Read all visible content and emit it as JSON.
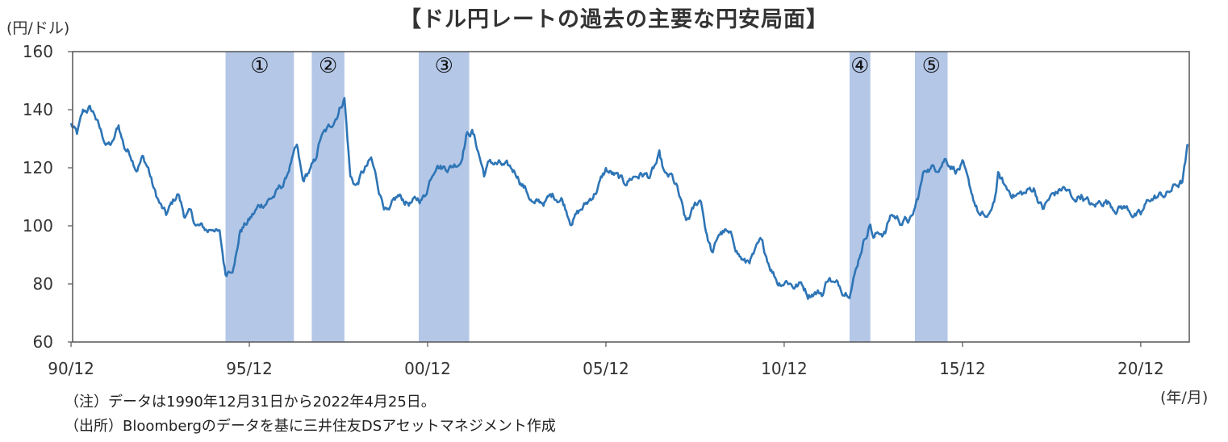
{
  "chart_data": {
    "type": "line",
    "title": "【ドル円レートの過去の主要な円安局面】",
    "ylabel": "(円/ドル)",
    "xlabel": "(年/月)",
    "ylim": [
      60,
      160
    ],
    "yticks": [
      60,
      80,
      100,
      120,
      140,
      160
    ],
    "xlim": [
      "1990-12-31",
      "2022-04-25"
    ],
    "xticks": [
      {
        "label": "90/12",
        "date": "1990-12"
      },
      {
        "label": "95/12",
        "date": "1995-12"
      },
      {
        "label": "00/12",
        "date": "2000-12"
      },
      {
        "label": "05/12",
        "date": "2005-12"
      },
      {
        "label": "10/12",
        "date": "2010-12"
      },
      {
        "label": "15/12",
        "date": "2015-12"
      },
      {
        "label": "20/12",
        "date": "2020-12"
      }
    ],
    "grid": false,
    "colors": {
      "line": "#2e75b6",
      "shade": "#b4c7e7",
      "frame": "#555555"
    },
    "shaded_periods": [
      {
        "label": "①",
        "start": "1995-04",
        "end": "1997-03"
      },
      {
        "label": "②",
        "start": "1997-09",
        "end": "1998-08"
      },
      {
        "label": "③",
        "start": "2000-09",
        "end": "2002-02"
      },
      {
        "label": "④",
        "start": "2012-10",
        "end": "2013-05"
      },
      {
        "label": "⑤",
        "start": "2014-08",
        "end": "2015-07"
      }
    ],
    "series": [
      {
        "points": [
          [
            "1990-12",
            135
          ],
          [
            "1991-02",
            131
          ],
          [
            "1991-04",
            138
          ],
          [
            "1991-06",
            140
          ],
          [
            "1991-08",
            138
          ],
          [
            "1991-10",
            132
          ],
          [
            "1991-12",
            128
          ],
          [
            "1992-02",
            128
          ],
          [
            "1992-04",
            134
          ],
          [
            "1992-06",
            127
          ],
          [
            "1992-08",
            125
          ],
          [
            "1992-10",
            121
          ],
          [
            "1992-12",
            124
          ],
          [
            "1993-02",
            120
          ],
          [
            "1993-04",
            112
          ],
          [
            "1993-06",
            107
          ],
          [
            "1993-08",
            103
          ],
          [
            "1993-10",
            107
          ],
          [
            "1993-12",
            111
          ],
          [
            "1994-02",
            104
          ],
          [
            "1994-04",
            104
          ],
          [
            "1994-06",
            100
          ],
          [
            "1994-08",
            99
          ],
          [
            "1994-10",
            98
          ],
          [
            "1994-12",
            100
          ],
          [
            "1995-02",
            97
          ],
          [
            "1995-04",
            83
          ],
          [
            "1995-05",
            85
          ],
          [
            "1995-07",
            88
          ],
          [
            "1995-09",
            99
          ],
          [
            "1995-12",
            102
          ],
          [
            "1996-03",
            106
          ],
          [
            "1996-06",
            109
          ],
          [
            "1996-09",
            111
          ],
          [
            "1996-12",
            115
          ],
          [
            "1997-02",
            122
          ],
          [
            "1997-04",
            126
          ],
          [
            "1997-06",
            114
          ],
          [
            "1997-08",
            118
          ],
          [
            "1997-10",
            121
          ],
          [
            "1997-12",
            130
          ],
          [
            "1998-03",
            133
          ],
          [
            "1998-06",
            140
          ],
          [
            "1998-08",
            145
          ],
          [
            "1998-10",
            117
          ],
          [
            "1998-12",
            114
          ],
          [
            "1999-02",
            118
          ],
          [
            "1999-05",
            122
          ],
          [
            "1999-08",
            111
          ],
          [
            "1999-11",
            104
          ],
          [
            "2000-02",
            109
          ],
          [
            "2000-05",
            108
          ],
          [
            "2000-08",
            108
          ],
          [
            "2000-11",
            110
          ],
          [
            "2001-01",
            117
          ],
          [
            "2001-03",
            123
          ],
          [
            "2001-05",
            121
          ],
          [
            "2001-08",
            121
          ],
          [
            "2001-11",
            123
          ],
          [
            "2002-01",
            132
          ],
          [
            "2002-03",
            133
          ],
          [
            "2002-05",
            126
          ],
          [
            "2002-07",
            118
          ],
          [
            "2002-09",
            122
          ],
          [
            "2002-12",
            121
          ],
          [
            "2003-03",
            119
          ],
          [
            "2003-06",
            118
          ],
          [
            "2003-09",
            113
          ],
          [
            "2003-12",
            107
          ],
          [
            "2004-03",
            108
          ],
          [
            "2004-06",
            110
          ],
          [
            "2004-09",
            110
          ],
          [
            "2004-12",
            103
          ],
          [
            "2005-03",
            105
          ],
          [
            "2005-06",
            108
          ],
          [
            "2005-09",
            113
          ],
          [
            "2005-12",
            119
          ],
          [
            "2006-03",
            117
          ],
          [
            "2006-06",
            114
          ],
          [
            "2006-09",
            117
          ],
          [
            "2006-12",
            118
          ],
          [
            "2007-03",
            117
          ],
          [
            "2007-06",
            123
          ],
          [
            "2007-08",
            116
          ],
          [
            "2007-10",
            116
          ],
          [
            "2007-12",
            112
          ],
          [
            "2008-03",
            100
          ],
          [
            "2008-06",
            106
          ],
          [
            "2008-08",
            109
          ],
          [
            "2008-10",
            97
          ],
          [
            "2008-12",
            90
          ],
          [
            "2009-02",
            97
          ],
          [
            "2009-04",
            98
          ],
          [
            "2009-07",
            94
          ],
          [
            "2009-09",
            90
          ],
          [
            "2009-11",
            87
          ],
          [
            "2010-02",
            90
          ],
          [
            "2010-04",
            93
          ],
          [
            "2010-06",
            89
          ],
          [
            "2010-08",
            85
          ],
          [
            "2010-10",
            81
          ],
          [
            "2011-01",
            82
          ],
          [
            "2011-03",
            80
          ],
          [
            "2011-06",
            80
          ],
          [
            "2011-08",
            77
          ],
          [
            "2011-10",
            78
          ],
          [
            "2012-01",
            77
          ],
          [
            "2012-03",
            83
          ],
          [
            "2012-05",
            80
          ],
          [
            "2012-08",
            78
          ],
          [
            "2012-10",
            79
          ],
          [
            "2012-12",
            85
          ],
          [
            "2013-02",
            93
          ],
          [
            "2013-05",
            102
          ],
          [
            "2013-06",
            96
          ],
          [
            "2013-08",
            98
          ],
          [
            "2013-10",
            98
          ],
          [
            "2013-12",
            104
          ],
          [
            "2014-03",
            102
          ],
          [
            "2014-07",
            102
          ],
          [
            "2014-09",
            109
          ],
          [
            "2014-11",
            118
          ],
          [
            "2014-12",
            120
          ],
          [
            "2015-03",
            120
          ],
          [
            "2015-06",
            124
          ],
          [
            "2015-08",
            122
          ],
          [
            "2015-10",
            120
          ],
          [
            "2015-12",
            121
          ],
          [
            "2016-02",
            113
          ],
          [
            "2016-06",
            103
          ],
          [
            "2016-09",
            102
          ],
          [
            "2016-11",
            110
          ],
          [
            "2016-12",
            117
          ],
          [
            "2017-03",
            112
          ],
          [
            "2017-06",
            111
          ],
          [
            "2017-09",
            111
          ],
          [
            "2017-12",
            113
          ],
          [
            "2018-03",
            106
          ],
          [
            "2018-06",
            110
          ],
          [
            "2018-10",
            113
          ],
          [
            "2018-12",
            111
          ],
          [
            "2019-01",
            108
          ],
          [
            "2019-04",
            111
          ],
          [
            "2019-08",
            106
          ],
          [
            "2019-12",
            109
          ],
          [
            "2020-03",
            107
          ],
          [
            "2020-06",
            107
          ],
          [
            "2020-09",
            105
          ],
          [
            "2020-12",
            103
          ],
          [
            "2021-03",
            109
          ],
          [
            "2021-06",
            110
          ],
          [
            "2021-09",
            111
          ],
          [
            "2021-12",
            114
          ],
          [
            "2022-02",
            115
          ],
          [
            "2022-03",
            121
          ],
          [
            "2022-04",
            128
          ]
        ]
      }
    ]
  },
  "notes": [
    "（注）データは1990年12月31日から2022年4月25日。",
    "（出所）Bloombergのデータを基に三井住友DSアセットマネジメント作成"
  ]
}
